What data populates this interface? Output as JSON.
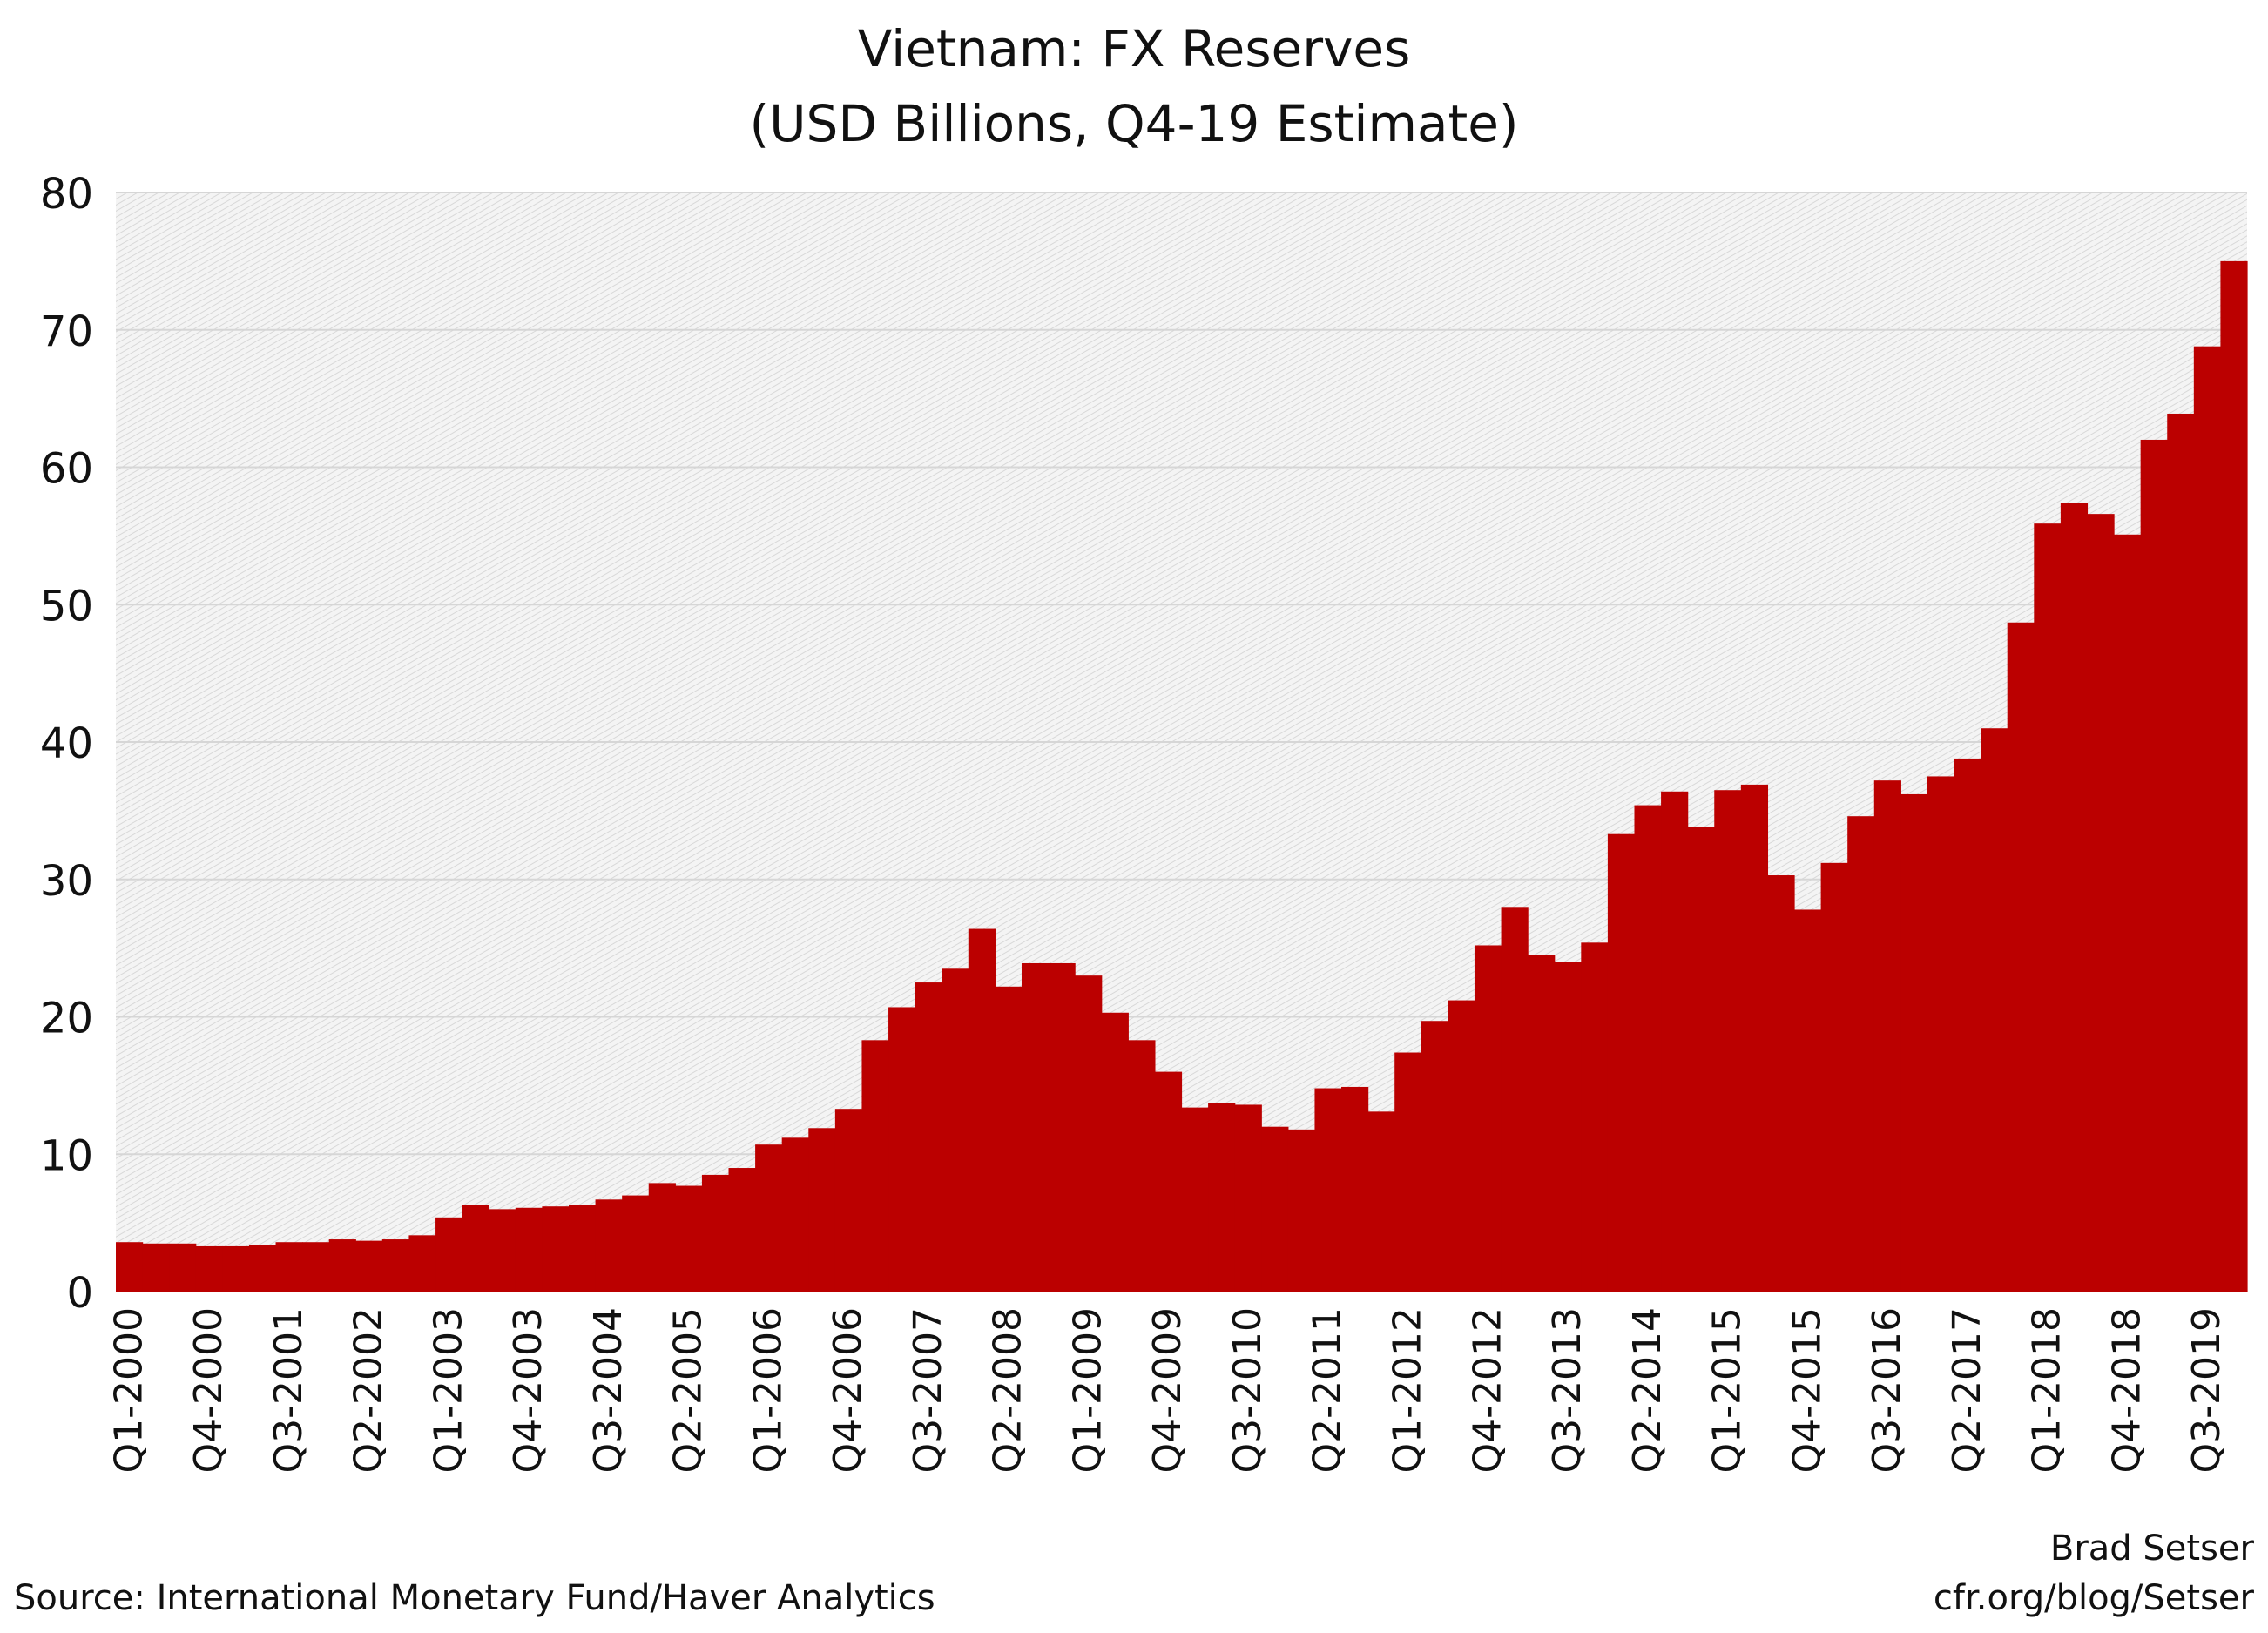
{
  "chart_data": {
    "type": "bar",
    "title": "Vietnam: FX Reserves",
    "subtitle": "(USD Billions, Q4-19 Estimate)",
    "xlabel": "",
    "ylabel": "",
    "ylim": [
      0,
      80
    ],
    "yticks": [
      0,
      10,
      20,
      30,
      40,
      50,
      60,
      70,
      80
    ],
    "grid": true,
    "bar_color": "#bb0000",
    "categories": [
      "Q1-2000",
      "Q2-2000",
      "Q3-2000",
      "Q4-2000",
      "Q1-2001",
      "Q2-2001",
      "Q3-2001",
      "Q4-2001",
      "Q1-2002",
      "Q2-2002",
      "Q3-2002",
      "Q4-2002",
      "Q1-2003",
      "Q2-2003",
      "Q3-2003",
      "Q4-2003",
      "Q1-2004",
      "Q2-2004",
      "Q3-2004",
      "Q4-2004",
      "Q1-2005",
      "Q2-2005",
      "Q3-2005",
      "Q4-2005",
      "Q1-2006",
      "Q2-2006",
      "Q3-2006",
      "Q4-2006",
      "Q1-2007",
      "Q2-2007",
      "Q3-2007",
      "Q4-2007",
      "Q1-2008",
      "Q2-2008",
      "Q3-2008",
      "Q4-2008",
      "Q1-2009",
      "Q2-2009",
      "Q3-2009",
      "Q4-2009",
      "Q1-2010",
      "Q2-2010",
      "Q3-2010",
      "Q4-2010",
      "Q1-2011",
      "Q2-2011",
      "Q3-2011",
      "Q4-2011",
      "Q1-2012",
      "Q2-2012",
      "Q3-2012",
      "Q4-2012",
      "Q1-2013",
      "Q2-2013",
      "Q3-2013",
      "Q4-2013",
      "Q1-2014",
      "Q2-2014",
      "Q3-2014",
      "Q4-2014",
      "Q1-2015",
      "Q2-2015",
      "Q3-2015",
      "Q4-2015",
      "Q1-2016",
      "Q2-2016",
      "Q3-2016",
      "Q4-2016",
      "Q1-2017",
      "Q2-2017",
      "Q3-2017",
      "Q4-2017",
      "Q1-2018",
      "Q2-2018",
      "Q3-2018",
      "Q4-2018",
      "Q1-2019",
      "Q2-2019",
      "Q3-2019",
      "Q4-2019"
    ],
    "tick_every": 3,
    "values": [
      3.6,
      3.5,
      3.5,
      3.3,
      3.3,
      3.4,
      3.6,
      3.6,
      3.8,
      3.7,
      3.8,
      4.1,
      5.4,
      6.3,
      6.0,
      6.1,
      6.2,
      6.3,
      6.7,
      7.0,
      7.9,
      7.7,
      8.5,
      9.0,
      10.7,
      11.2,
      11.9,
      13.3,
      18.3,
      20.7,
      22.5,
      23.5,
      26.4,
      22.2,
      23.9,
      23.9,
      23.0,
      20.3,
      18.3,
      16.0,
      13.4,
      13.7,
      13.6,
      12.0,
      11.8,
      14.8,
      14.9,
      13.1,
      17.4,
      19.7,
      21.2,
      25.2,
      28.0,
      24.5,
      24.0,
      25.4,
      33.3,
      35.4,
      36.4,
      33.8,
      36.5,
      36.9,
      30.3,
      27.8,
      31.2,
      34.6,
      37.2,
      36.2,
      37.5,
      38.8,
      41.0,
      48.7,
      55.9,
      57.4,
      56.6,
      55.1,
      62.0,
      63.9,
      68.8,
      75.0
    ]
  },
  "source": "Source: International Monetary Fund/Haver Analytics",
  "credit_name": "Brad Setser",
  "credit_url": "cfr.org/blog/Setser"
}
